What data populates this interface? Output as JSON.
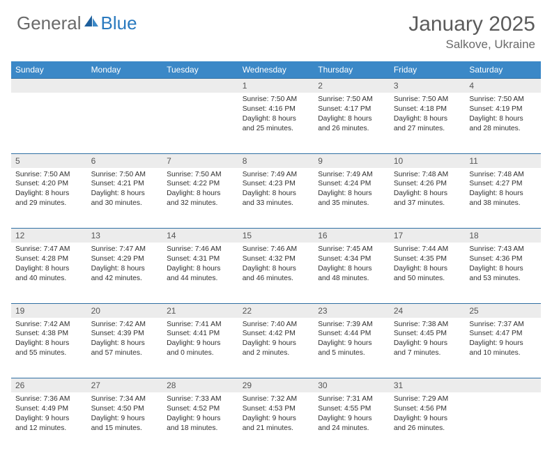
{
  "brand": {
    "general": "General",
    "blue": "Blue"
  },
  "title": "January 2025",
  "location": "Salkove, Ukraine",
  "colors": {
    "header_bg": "#3b88c7",
    "header_text": "#ffffff",
    "daynum_bg": "#ececec",
    "daynum_text": "#555555",
    "divider": "#2f6fa3",
    "body_text": "#303030",
    "title_text": "#5b5b5b",
    "logo_general": "#6a6a6a",
    "logo_blue": "#2a7abf"
  },
  "weekdays": [
    "Sunday",
    "Monday",
    "Tuesday",
    "Wednesday",
    "Thursday",
    "Friday",
    "Saturday"
  ],
  "weeks": [
    [
      null,
      null,
      null,
      {
        "n": "1",
        "sr": "7:50 AM",
        "ss": "4:16 PM",
        "dl": "8 hours and 25 minutes."
      },
      {
        "n": "2",
        "sr": "7:50 AM",
        "ss": "4:17 PM",
        "dl": "8 hours and 26 minutes."
      },
      {
        "n": "3",
        "sr": "7:50 AM",
        "ss": "4:18 PM",
        "dl": "8 hours and 27 minutes."
      },
      {
        "n": "4",
        "sr": "7:50 AM",
        "ss": "4:19 PM",
        "dl": "8 hours and 28 minutes."
      }
    ],
    [
      {
        "n": "5",
        "sr": "7:50 AM",
        "ss": "4:20 PM",
        "dl": "8 hours and 29 minutes."
      },
      {
        "n": "6",
        "sr": "7:50 AM",
        "ss": "4:21 PM",
        "dl": "8 hours and 30 minutes."
      },
      {
        "n": "7",
        "sr": "7:50 AM",
        "ss": "4:22 PM",
        "dl": "8 hours and 32 minutes."
      },
      {
        "n": "8",
        "sr": "7:49 AM",
        "ss": "4:23 PM",
        "dl": "8 hours and 33 minutes."
      },
      {
        "n": "9",
        "sr": "7:49 AM",
        "ss": "4:24 PM",
        "dl": "8 hours and 35 minutes."
      },
      {
        "n": "10",
        "sr": "7:48 AM",
        "ss": "4:26 PM",
        "dl": "8 hours and 37 minutes."
      },
      {
        "n": "11",
        "sr": "7:48 AM",
        "ss": "4:27 PM",
        "dl": "8 hours and 38 minutes."
      }
    ],
    [
      {
        "n": "12",
        "sr": "7:47 AM",
        "ss": "4:28 PM",
        "dl": "8 hours and 40 minutes."
      },
      {
        "n": "13",
        "sr": "7:47 AM",
        "ss": "4:29 PM",
        "dl": "8 hours and 42 minutes."
      },
      {
        "n": "14",
        "sr": "7:46 AM",
        "ss": "4:31 PM",
        "dl": "8 hours and 44 minutes."
      },
      {
        "n": "15",
        "sr": "7:46 AM",
        "ss": "4:32 PM",
        "dl": "8 hours and 46 minutes."
      },
      {
        "n": "16",
        "sr": "7:45 AM",
        "ss": "4:34 PM",
        "dl": "8 hours and 48 minutes."
      },
      {
        "n": "17",
        "sr": "7:44 AM",
        "ss": "4:35 PM",
        "dl": "8 hours and 50 minutes."
      },
      {
        "n": "18",
        "sr": "7:43 AM",
        "ss": "4:36 PM",
        "dl": "8 hours and 53 minutes."
      }
    ],
    [
      {
        "n": "19",
        "sr": "7:42 AM",
        "ss": "4:38 PM",
        "dl": "8 hours and 55 minutes."
      },
      {
        "n": "20",
        "sr": "7:42 AM",
        "ss": "4:39 PM",
        "dl": "8 hours and 57 minutes."
      },
      {
        "n": "21",
        "sr": "7:41 AM",
        "ss": "4:41 PM",
        "dl": "9 hours and 0 minutes."
      },
      {
        "n": "22",
        "sr": "7:40 AM",
        "ss": "4:42 PM",
        "dl": "9 hours and 2 minutes."
      },
      {
        "n": "23",
        "sr": "7:39 AM",
        "ss": "4:44 PM",
        "dl": "9 hours and 5 minutes."
      },
      {
        "n": "24",
        "sr": "7:38 AM",
        "ss": "4:45 PM",
        "dl": "9 hours and 7 minutes."
      },
      {
        "n": "25",
        "sr": "7:37 AM",
        "ss": "4:47 PM",
        "dl": "9 hours and 10 minutes."
      }
    ],
    [
      {
        "n": "26",
        "sr": "7:36 AM",
        "ss": "4:49 PM",
        "dl": "9 hours and 12 minutes."
      },
      {
        "n": "27",
        "sr": "7:34 AM",
        "ss": "4:50 PM",
        "dl": "9 hours and 15 minutes."
      },
      {
        "n": "28",
        "sr": "7:33 AM",
        "ss": "4:52 PM",
        "dl": "9 hours and 18 minutes."
      },
      {
        "n": "29",
        "sr": "7:32 AM",
        "ss": "4:53 PM",
        "dl": "9 hours and 21 minutes."
      },
      {
        "n": "30",
        "sr": "7:31 AM",
        "ss": "4:55 PM",
        "dl": "9 hours and 24 minutes."
      },
      {
        "n": "31",
        "sr": "7:29 AM",
        "ss": "4:56 PM",
        "dl": "9 hours and 26 minutes."
      },
      null
    ]
  ],
  "labels": {
    "sunrise": "Sunrise:",
    "sunset": "Sunset:",
    "daylight": "Daylight:"
  }
}
